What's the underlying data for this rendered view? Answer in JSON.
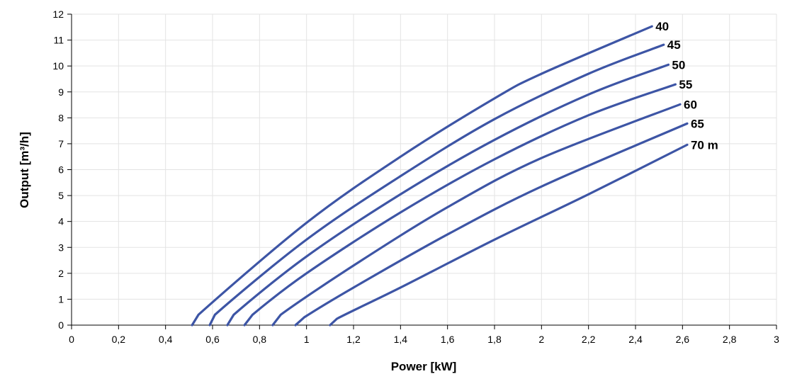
{
  "chart_data": {
    "type": "line",
    "title": "",
    "xlabel": "Power [kW]",
    "ylabel": "Output [m³/h]",
    "xlim": [
      0,
      3
    ],
    "ylim": [
      0,
      12
    ],
    "xticks": [
      "0",
      "0,2",
      "0,4",
      "0,6",
      "0,8",
      "1",
      "1,2",
      "1,4",
      "1,6",
      "1,8",
      "2",
      "2,2",
      "2,4",
      "2,6",
      "2,8",
      "3"
    ],
    "yticks": [
      "0",
      "1",
      "2",
      "3",
      "4",
      "5",
      "6",
      "7",
      "8",
      "9",
      "10",
      "11",
      "12"
    ],
    "grid": true,
    "line_color": "#3d55a5",
    "series": [
      {
        "name": "40",
        "points": [
          [
            0.513,
            0
          ],
          [
            0.54,
            0.4
          ],
          [
            1.0,
            3.95
          ],
          [
            1.4,
            6.5
          ],
          [
            1.8,
            8.75
          ],
          [
            2.0,
            9.7
          ],
          [
            2.47,
            11.53
          ]
        ]
      },
      {
        "name": "45",
        "points": [
          [
            0.588,
            0
          ],
          [
            0.61,
            0.4
          ],
          [
            1.0,
            3.3
          ],
          [
            1.4,
            5.75
          ],
          [
            1.8,
            7.95
          ],
          [
            2.2,
            9.7
          ],
          [
            2.52,
            10.82
          ]
        ]
      },
      {
        "name": "50",
        "points": [
          [
            0.663,
            0
          ],
          [
            0.69,
            0.4
          ],
          [
            1.0,
            2.65
          ],
          [
            1.4,
            5.05
          ],
          [
            1.8,
            7.15
          ],
          [
            2.2,
            8.9
          ],
          [
            2.54,
            10.05
          ]
        ]
      },
      {
        "name": "55",
        "points": [
          [
            0.736,
            0
          ],
          [
            0.77,
            0.4
          ],
          [
            1.0,
            2.0
          ],
          [
            1.4,
            4.35
          ],
          [
            1.8,
            6.4
          ],
          [
            2.2,
            8.1
          ],
          [
            2.57,
            9.29
          ]
        ]
      },
      {
        "name": "60",
        "points": [
          [
            0.856,
            0
          ],
          [
            0.89,
            0.4
          ],
          [
            1.2,
            2.3
          ],
          [
            1.6,
            4.55
          ],
          [
            2.0,
            6.45
          ],
          [
            2.59,
            8.52
          ]
        ]
      },
      {
        "name": "65",
        "points": [
          [
            0.953,
            0
          ],
          [
            0.99,
            0.3
          ],
          [
            1.2,
            1.45
          ],
          [
            1.6,
            3.5
          ],
          [
            2.0,
            5.35
          ],
          [
            2.62,
            7.78
          ]
        ]
      },
      {
        "name": "70 m",
        "points": [
          [
            1.1,
            0
          ],
          [
            1.13,
            0.25
          ],
          [
            1.4,
            1.45
          ],
          [
            1.8,
            3.3
          ],
          [
            2.2,
            5.05
          ],
          [
            2.62,
            6.96
          ]
        ]
      }
    ]
  }
}
